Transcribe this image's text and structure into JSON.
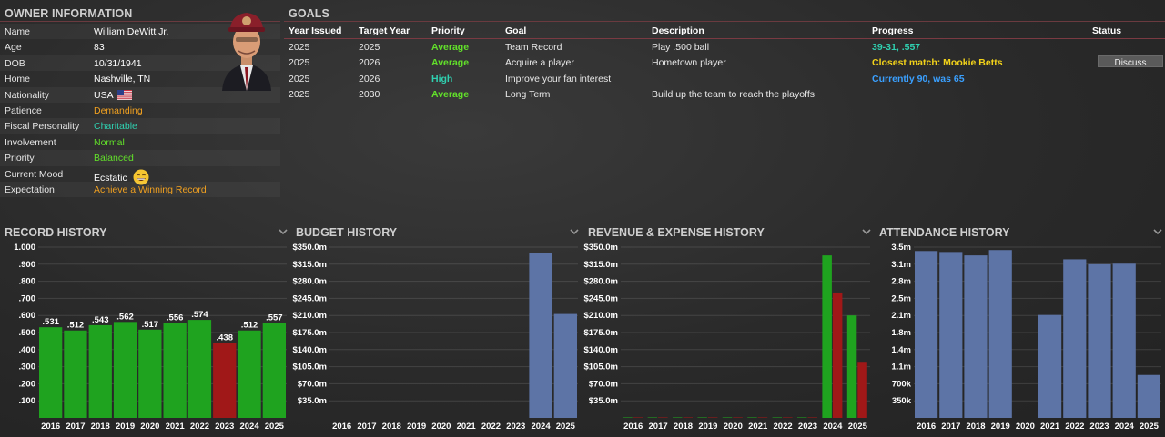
{
  "owner": {
    "title": "OWNER INFORMATION",
    "rows": [
      {
        "label": "Name",
        "value": "William DeWitt Jr.",
        "color": ""
      },
      {
        "label": "Age",
        "value": "83",
        "color": ""
      },
      {
        "label": "DOB",
        "value": "10/31/1941",
        "color": ""
      },
      {
        "label": "Home",
        "value": "Nashville, TN",
        "color": ""
      },
      {
        "label": "Nationality",
        "value": "USA",
        "color": "",
        "icon": "us-flag-icon"
      },
      {
        "label": "Patience",
        "value": "Demanding",
        "color": "#f0a020"
      },
      {
        "label": "Fiscal Personality",
        "value": "Charitable",
        "color": "#2fd0b0"
      },
      {
        "label": "Involvement",
        "value": "Normal",
        "color": "#62e02a"
      },
      {
        "label": "Priority",
        "value": "Balanced",
        "color": "#62e02a"
      },
      {
        "label": "Current Mood",
        "value": "Ecstatic",
        "color": "",
        "icon": "ecstatic-smiley-icon"
      },
      {
        "label": "Expectation",
        "value": "Achieve a Winning Record",
        "color": "#f0a020"
      }
    ]
  },
  "goals": {
    "title": "GOALS",
    "columns": [
      "Year Issued",
      "Target Year",
      "Priority",
      "Goal",
      "Description",
      "Progress",
      "Status"
    ],
    "rows": [
      {
        "year_issued": "2025",
        "target_year": "2025",
        "priority": "Average",
        "priority_color": "#62e02a",
        "goal": "Team Record",
        "description": "Play .500 ball",
        "progress": "39-31, .557",
        "progress_color": "#2fd0b0",
        "status": ""
      },
      {
        "year_issued": "2025",
        "target_year": "2026",
        "priority": "Average",
        "priority_color": "#62e02a",
        "goal": "Acquire a player",
        "description": "Hometown player",
        "progress": "Closest match: Mookie Betts",
        "progress_color": "#f2d21a",
        "status": "Discuss"
      },
      {
        "year_issued": "2025",
        "target_year": "2026",
        "priority": "High",
        "priority_color": "#2fd0b0",
        "goal": "Improve your fan interest",
        "description": "",
        "progress": "Currently 90, was 65",
        "progress_color": "#3aa0ff",
        "status": ""
      },
      {
        "year_issued": "2025",
        "target_year": "2030",
        "priority": "Average",
        "priority_color": "#62e02a",
        "goal": "Long Term",
        "description": "Build up the team to reach the playoffs",
        "progress": "",
        "progress_color": "",
        "status": ""
      }
    ]
  },
  "chart_data": [
    {
      "title": "RECORD HISTORY",
      "type": "bar",
      "categories": [
        "2016",
        "2017",
        "2018",
        "2019",
        "2020",
        "2021",
        "2022",
        "2023",
        "2024",
        "2025"
      ],
      "values": [
        0.531,
        0.512,
        0.543,
        0.562,
        0.517,
        0.556,
        0.574,
        0.438,
        0.512,
        0.557
      ],
      "value_labels": [
        ".531",
        ".512",
        ".543",
        ".562",
        ".517",
        ".556",
        ".574",
        ".438",
        ".512",
        ".557"
      ],
      "colors": [
        "#1fa31f",
        "#1fa31f",
        "#1fa31f",
        "#1fa31f",
        "#1fa31f",
        "#1fa31f",
        "#1fa31f",
        "#a01818",
        "#1fa31f",
        "#1fa31f"
      ],
      "ytick_labels": [
        "1.000",
        ".900",
        ".800",
        ".700",
        ".600",
        ".500",
        ".400",
        ".300",
        ".200",
        ".100"
      ],
      "ylim": [
        0,
        1.0
      ],
      "grid": true
    },
    {
      "title": "BUDGET HISTORY",
      "type": "bar",
      "categories": [
        "2016",
        "2017",
        "2018",
        "2019",
        "2020",
        "2021",
        "2022",
        "2023",
        "2024",
        "2025"
      ],
      "values": [
        0,
        0,
        0,
        0,
        0,
        0,
        0,
        0,
        338,
        213
      ],
      "colors": [
        "#5d74a6"
      ],
      "ytick_labels": [
        "$350.0m",
        "$315.0m",
        "$280.0m",
        "$245.0m",
        "$210.0m",
        "$175.0m",
        "$140.0m",
        "$105.0m",
        "$70.0m",
        "$35.0m"
      ],
      "ylim": [
        0,
        350
      ],
      "grid": true
    },
    {
      "title": "REVENUE & EXPENSE HISTORY",
      "type": "bar",
      "categories": [
        "2016",
        "2017",
        "2018",
        "2019",
        "2020",
        "2021",
        "2022",
        "2023",
        "2024",
        "2025"
      ],
      "series": [
        {
          "values": [
            1,
            1,
            1,
            1,
            1,
            1,
            1,
            1,
            333,
            210
          ],
          "color": "#1fa31f"
        },
        {
          "values": [
            1,
            1,
            1,
            1,
            1,
            1,
            1,
            1,
            257,
            115
          ],
          "color": "#a01818"
        }
      ],
      "ytick_labels": [
        "$350.0m",
        "$315.0m",
        "$280.0m",
        "$245.0m",
        "$210.0m",
        "$175.0m",
        "$140.0m",
        "$105.0m",
        "$70.0m",
        "$35.0m"
      ],
      "ylim": [
        0,
        350
      ],
      "grid": true
    },
    {
      "title": "ATTENDANCE HISTORY",
      "type": "bar",
      "categories": [
        "2016",
        "2017",
        "2018",
        "2019",
        "2020",
        "2021",
        "2022",
        "2023",
        "2024",
        "2025"
      ],
      "values": [
        3420000,
        3400000,
        3330000,
        3440000,
        0,
        2110000,
        3250000,
        3150000,
        3160000,
        880000
      ],
      "colors": [
        "#5d74a6"
      ],
      "ytick_labels": [
        "3.5m",
        "3.1m",
        "2.8m",
        "2.5m",
        "2.1m",
        "1.8m",
        "1.4m",
        "1.1m",
        "700k",
        "350k"
      ],
      "ylim": [
        0,
        3500000
      ],
      "grid": true
    }
  ]
}
